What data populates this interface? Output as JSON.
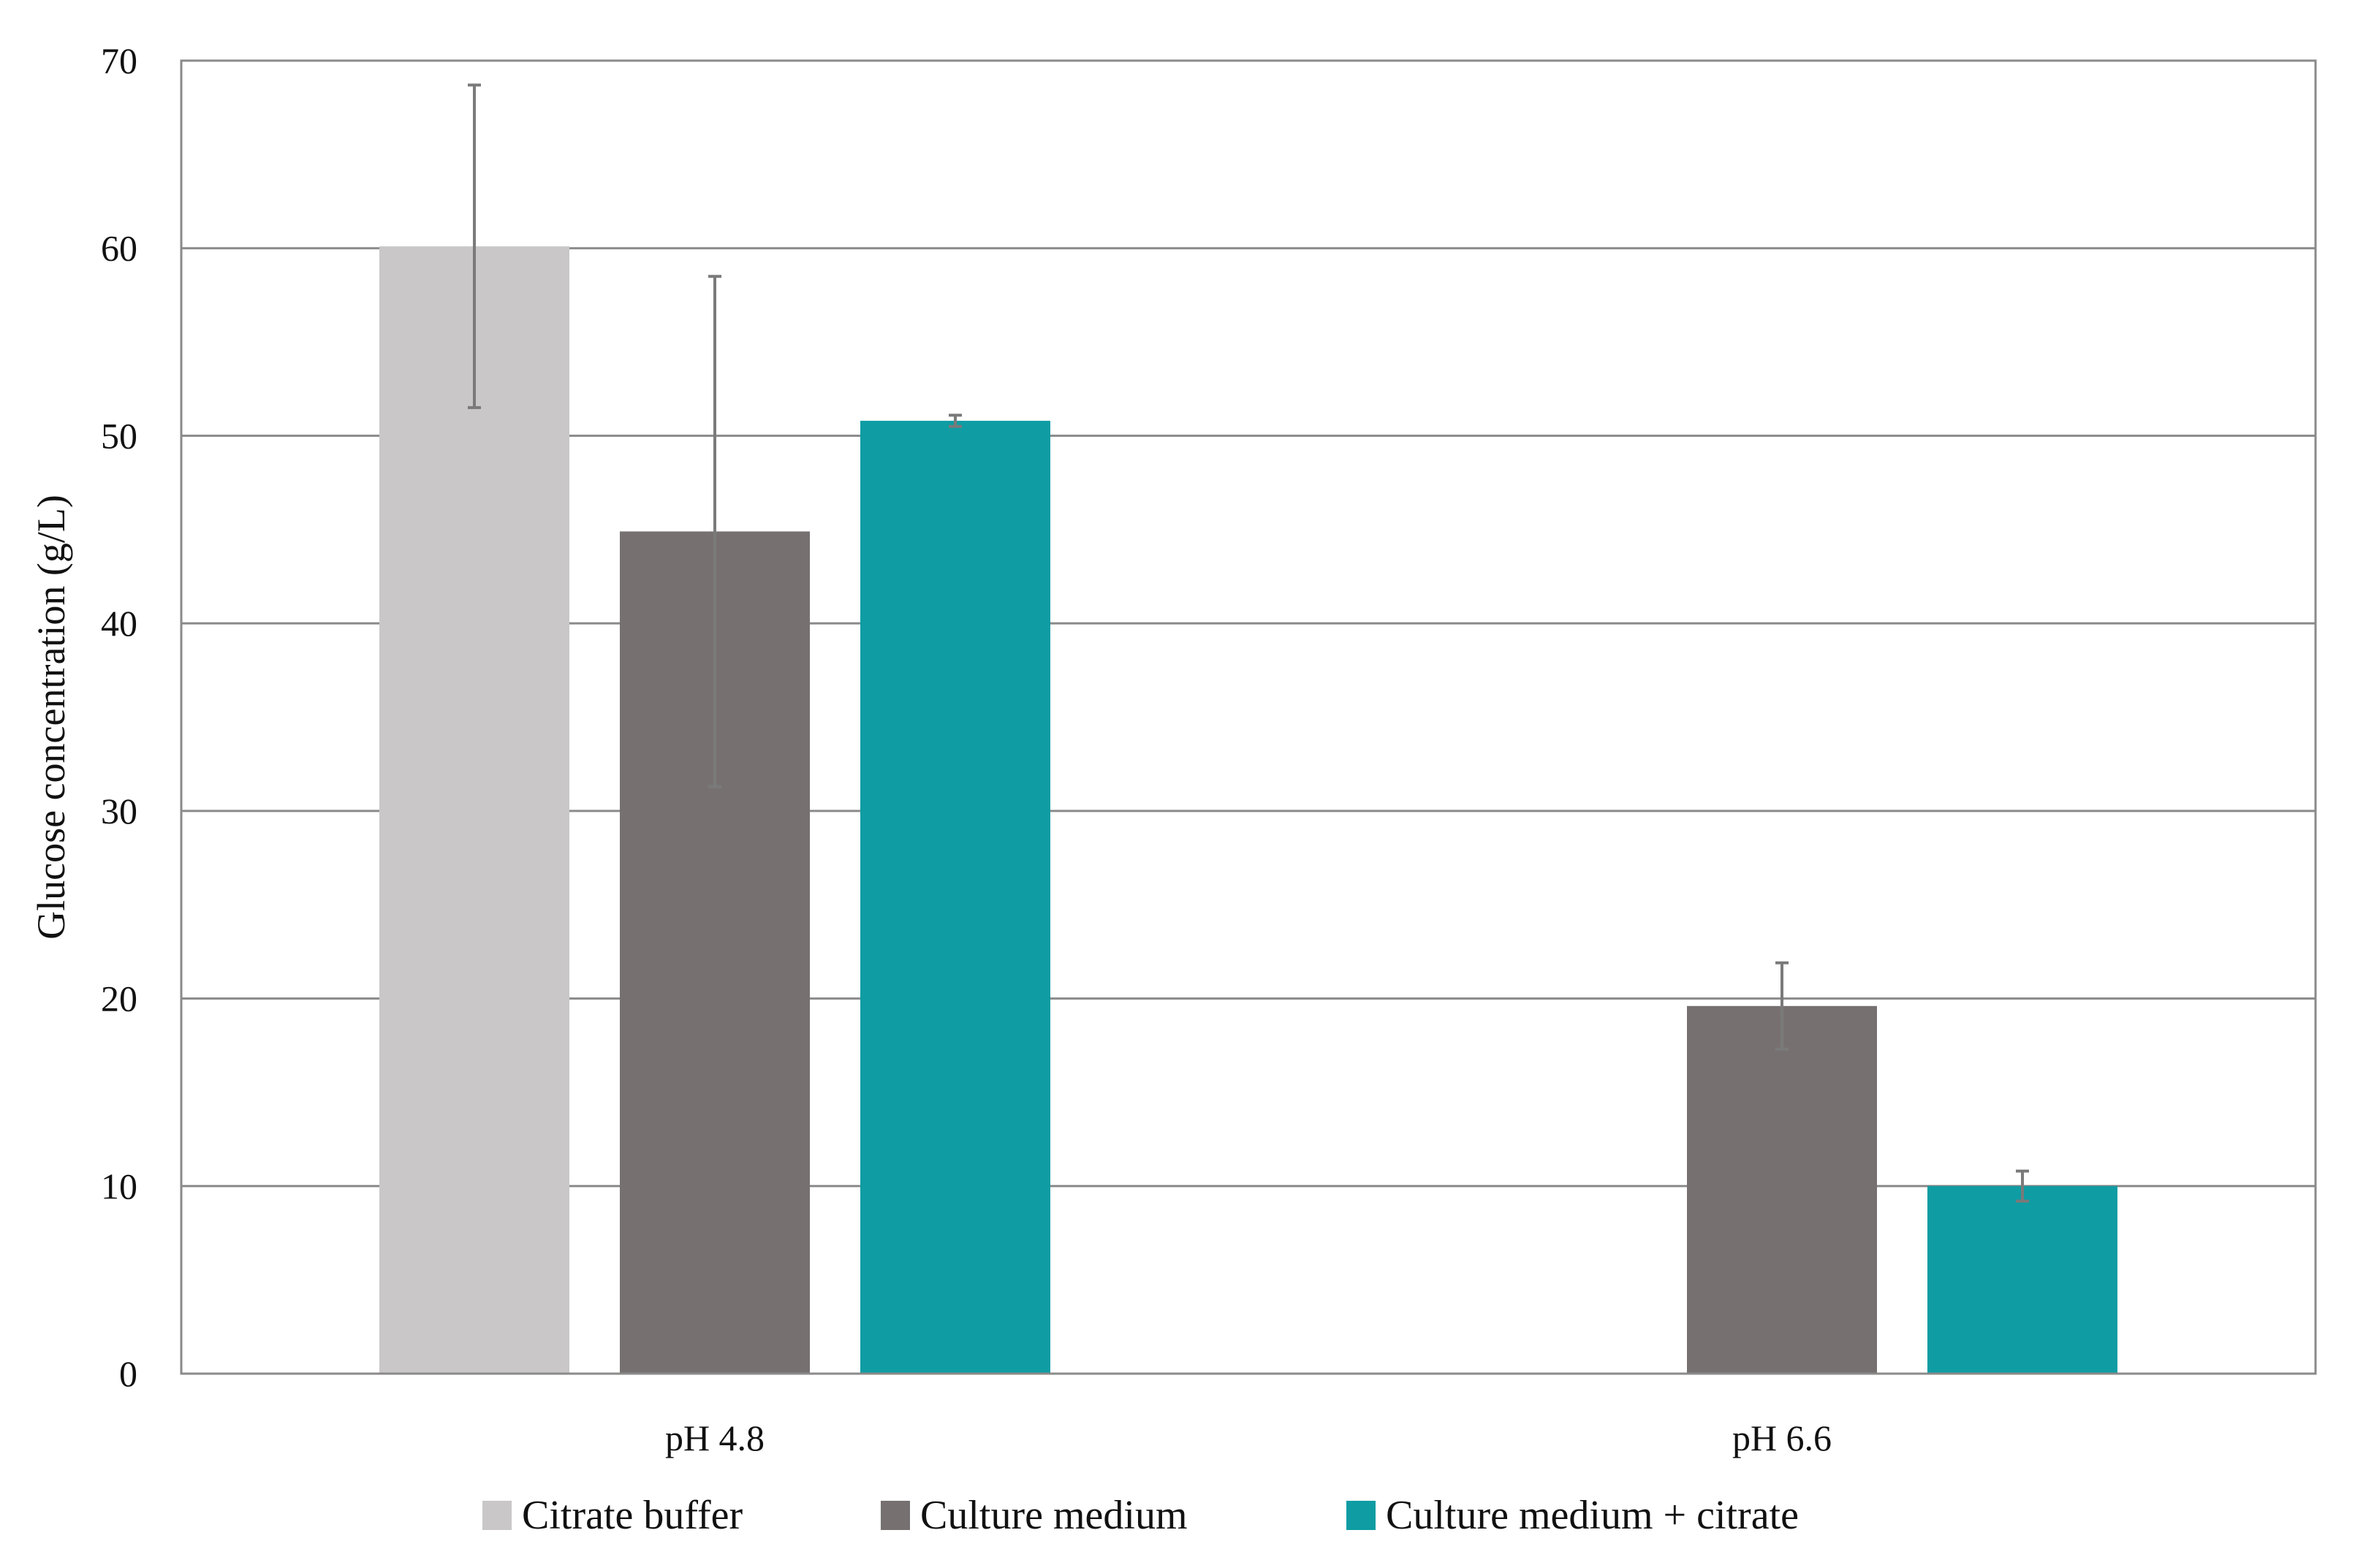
{
  "chart_data": {
    "type": "bar",
    "title": "",
    "xlabel": "",
    "ylabel": "Glucose concentration (g/L)",
    "categories": [
      "pH 4.8",
      "pH 6.6"
    ],
    "yticks": [
      "0",
      "10",
      "20",
      "30",
      "40",
      "50",
      "60",
      "70"
    ],
    "ylim": [
      0,
      70
    ],
    "grid": true,
    "legend_position": "bottom",
    "series": [
      {
        "name": "Citrate buffer",
        "color": "#c9c7c8",
        "values": [
          60.1,
          null
        ],
        "errors": [
          8.6,
          null
        ]
      },
      {
        "name": "Culture medium",
        "color": "#767170",
        "values": [
          44.9,
          19.6
        ],
        "errors": [
          13.6,
          2.3
        ]
      },
      {
        "name": "Culture medium + citrate",
        "color": "#0f9ca3",
        "values": [
          50.8,
          10.0
        ],
        "errors": [
          0.3,
          0.8
        ]
      }
    ]
  }
}
